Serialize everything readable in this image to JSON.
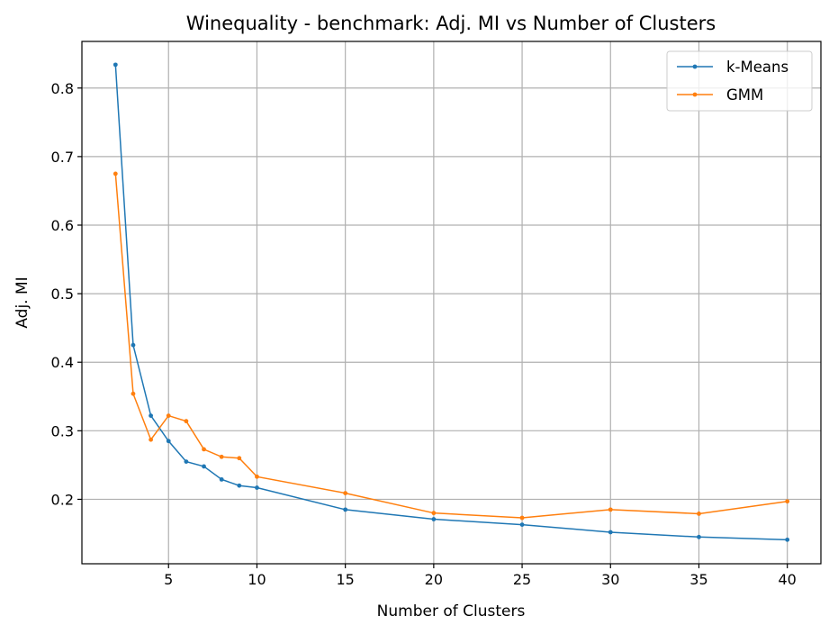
{
  "chart_data": {
    "type": "line",
    "title": "Winequality - benchmark: Adj. MI vs Number of Clusters",
    "xlabel": "Number of Clusters",
    "ylabel": "Adj. MI",
    "xlim": [
      0.1,
      41.9
    ],
    "ylim": [
      0.106,
      0.868
    ],
    "xticks": [
      5,
      10,
      15,
      20,
      25,
      30,
      35,
      40
    ],
    "yticks": [
      0.2,
      0.3,
      0.4,
      0.5,
      0.6,
      0.7,
      0.8
    ],
    "grid": true,
    "legend_position": "top-right",
    "x": [
      2,
      3,
      4,
      5,
      6,
      7,
      8,
      9,
      10,
      15,
      20,
      25,
      30,
      35,
      40
    ],
    "series": [
      {
        "name": "k-Means",
        "color": "#1f77b4",
        "values": [
          0.834,
          0.425,
          0.322,
          0.285,
          0.255,
          0.248,
          0.229,
          0.22,
          0.217,
          0.185,
          0.171,
          0.163,
          0.152,
          0.145,
          0.141
        ]
      },
      {
        "name": "GMM",
        "color": "#ff7f0e",
        "values": [
          0.675,
          0.354,
          0.287,
          0.322,
          0.314,
          0.273,
          0.262,
          0.26,
          0.233,
          0.209,
          0.18,
          0.173,
          0.185,
          0.179,
          0.197
        ]
      }
    ]
  }
}
